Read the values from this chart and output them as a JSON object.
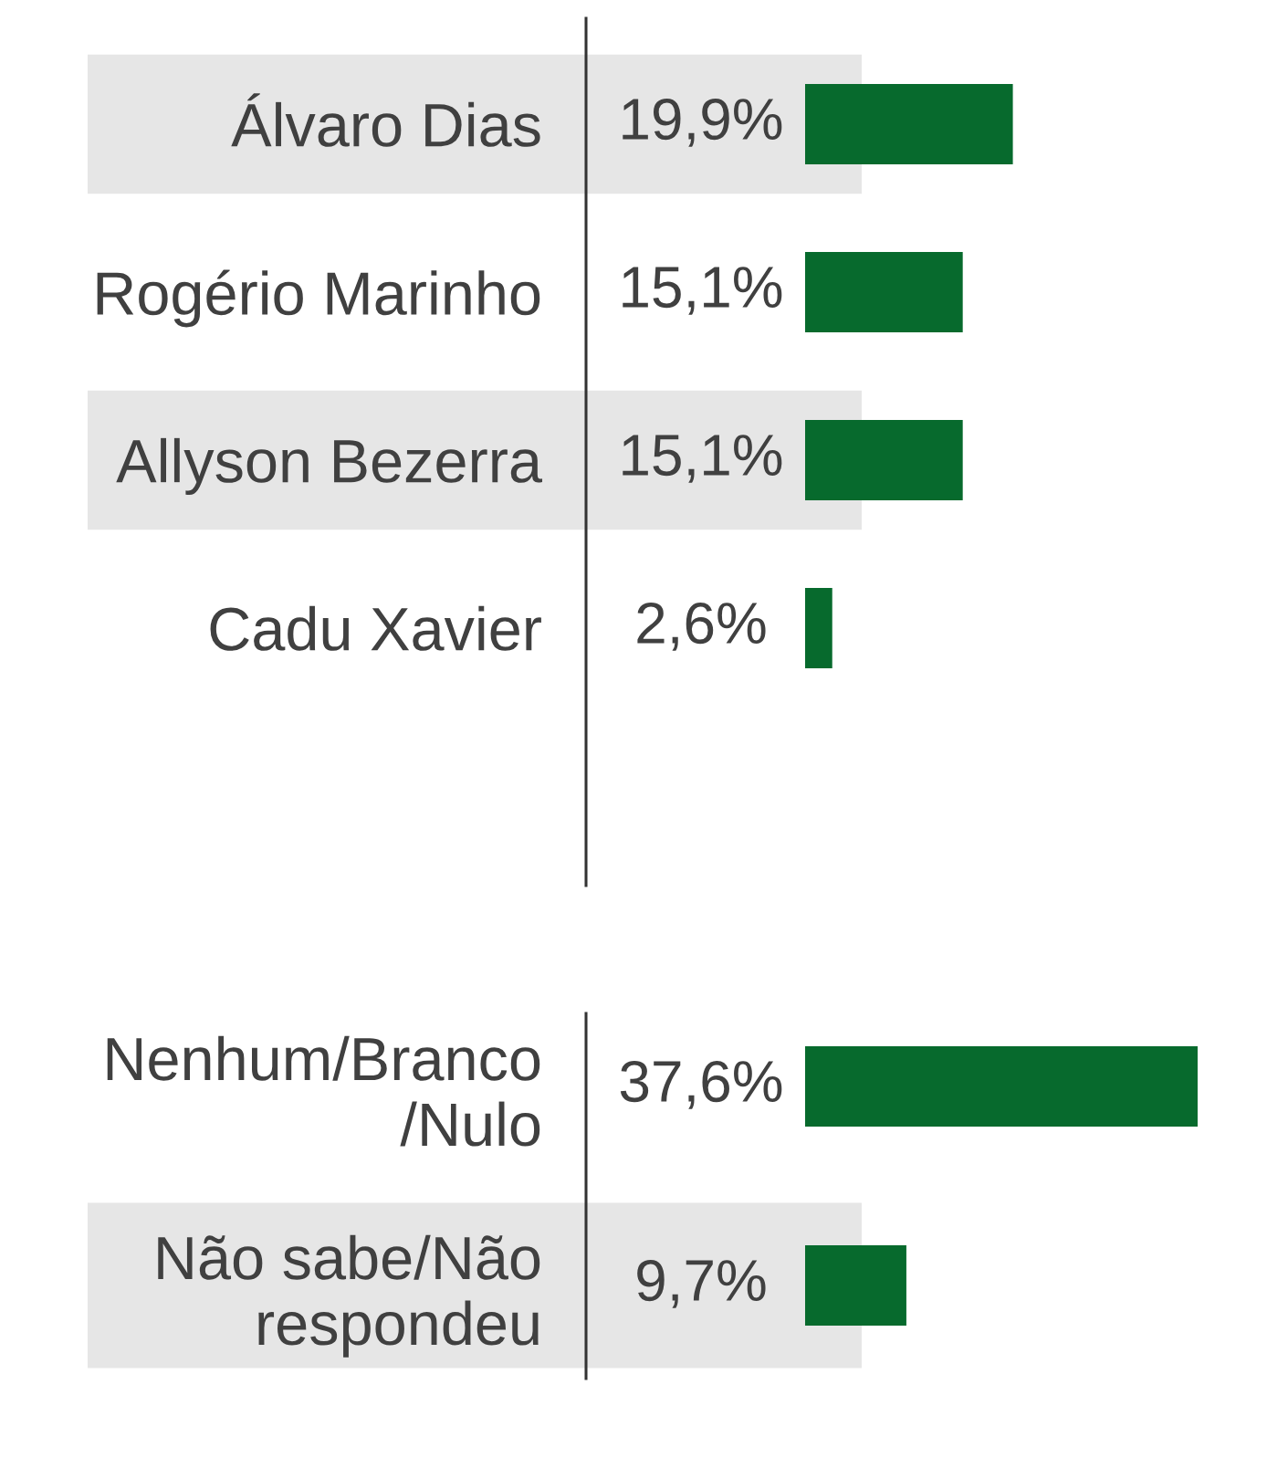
{
  "chart_data": [
    {
      "type": "bar",
      "orientation": "horizontal",
      "categories": [
        "Álvaro Dias",
        "Rogério Marinho",
        "Allyson Bezerra",
        "Cadu Xavier"
      ],
      "values": [
        19.9,
        15.1,
        15.1,
        2.6
      ],
      "value_labels": [
        "19,9%",
        "15,1%",
        "15,1%",
        "2,6%"
      ],
      "color": "#076a2d",
      "tick_labels": "y",
      "bands": [
        {
          "axis": "y",
          "from": "Álvaro Dias",
          "to": "Álvaro Dias",
          "color": "#e6e6e6"
        },
        {
          "axis": "y",
          "from": "Allyson Bezerra",
          "to": "Allyson Bezerra",
          "color": "#e6e6e6"
        }
      ]
    },
    {
      "type": "bar",
      "orientation": "horizontal",
      "categories": [
        "Nenhum/Branco\n/Nulo",
        "Não sabe/Não\nrespondeu"
      ],
      "values": [
        37.6,
        9.7
      ],
      "value_labels": [
        "37,6%",
        "9,7%"
      ],
      "color": "#076a2d",
      "tick_labels": "y",
      "bands": [
        {
          "axis": "y",
          "from": "Não sabe/Não\nrespondeu",
          "to": "Não sabe/Não\nrespondeu",
          "color": "#e6e6e6"
        }
      ]
    }
  ]
}
